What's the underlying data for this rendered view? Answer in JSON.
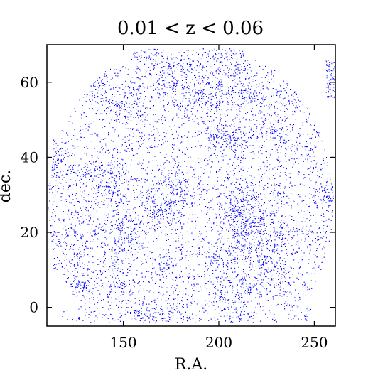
{
  "chart_data": {
    "type": "scatter",
    "title": "0.01 < z < 0.06",
    "xlabel": "R.A.",
    "ylabel": "dec.",
    "xlim": [
      110,
      261
    ],
    "ylim": [
      -5,
      70
    ],
    "xticks": [
      150,
      200,
      250
    ],
    "yticks": [
      0,
      20,
      40,
      60
    ],
    "xtick_labels": [
      "150",
      "200",
      "250"
    ],
    "ytick_labels": [
      "0",
      "20",
      "40",
      "60"
    ],
    "grid": false,
    "legend": "none",
    "marker_color": "#0000ff",
    "series": [
      {
        "description_of_footprint": "",
        "points_sample": [
          [
            120,
            10
          ],
          [
            135,
            20
          ],
          [
            150,
            35
          ],
          [
            165,
            50
          ],
          [
            180,
            60
          ],
          [
            195,
            45
          ],
          [
            210,
            30
          ],
          [
            225,
            15
          ],
          [
            240,
            5
          ],
          [
            250,
            40
          ],
          [
            175,
            25
          ],
          [
            200,
            10
          ]
        ]
      }
    ]
  }
}
